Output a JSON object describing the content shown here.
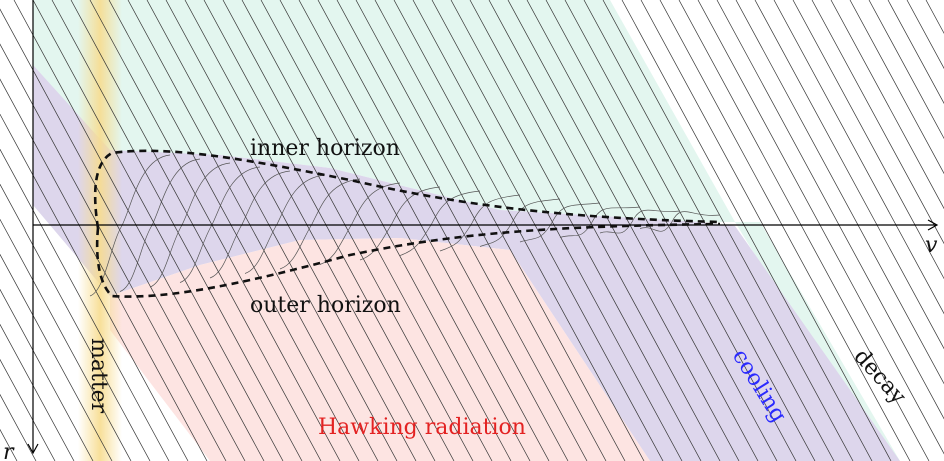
{
  "labels": {
    "inner_horizon": "inner horizon",
    "outer_horizon": "outer horizon",
    "matter": "matter",
    "hawking": "Hawking radiation",
    "cooling": "cooling",
    "decay": "decay",
    "axis_v": "v",
    "axis_r": "r"
  },
  "colors": {
    "teal_region": "#e3f6ef",
    "purple_region": "#ddd6ec",
    "pink_region": "#fde4e2",
    "matter_band": "#f7dc8e",
    "hawking_text": "#e32222",
    "cooling_text": "#2a2aff",
    "line": "#333333",
    "dashed": "#111111"
  }
}
